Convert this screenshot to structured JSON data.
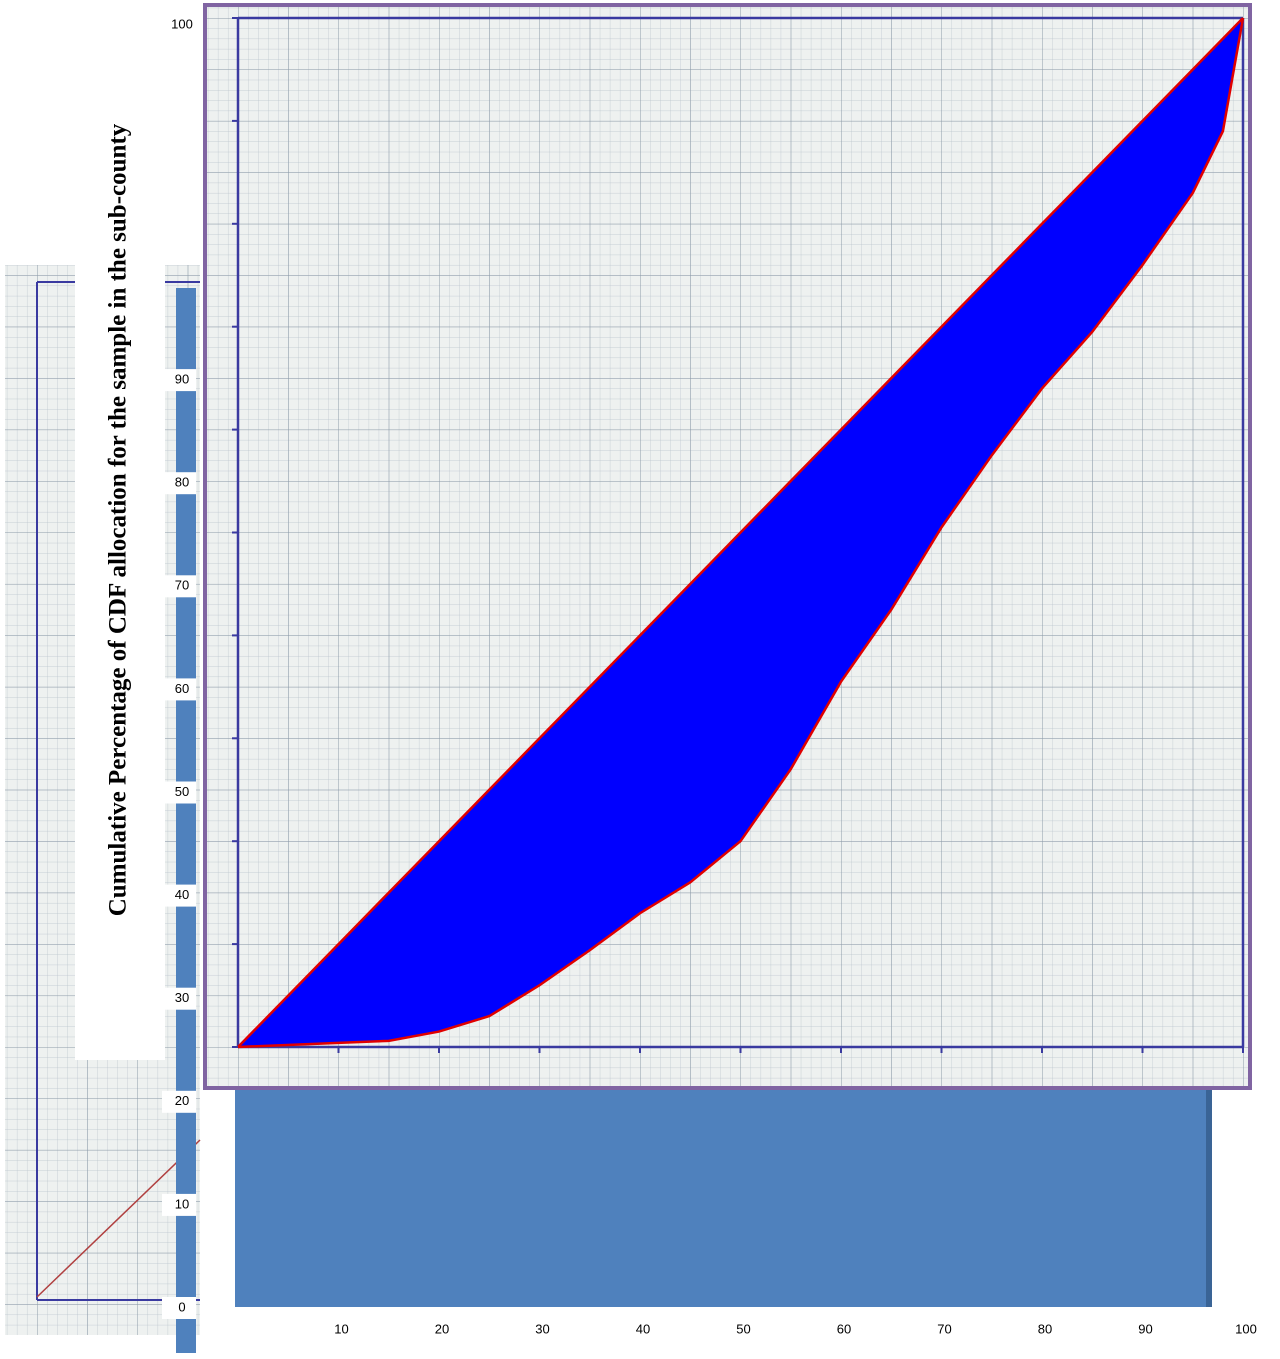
{
  "chart_data": {
    "type": "lorenz",
    "y_label": "Cumulative Percentage of CDF allocation for the sample in the sub-county",
    "x": [
      0,
      10,
      15,
      20,
      25,
      30,
      35,
      40,
      45,
      50,
      55,
      60,
      65,
      70,
      75,
      80,
      85,
      90,
      95,
      98,
      100
    ],
    "series": [
      {
        "color": "#e00000",
        "values": [
          0,
          10,
          15,
          20,
          25,
          30,
          35,
          40,
          45,
          50,
          55,
          60,
          65,
          70,
          75,
          80,
          85,
          90,
          95,
          98,
          100
        ]
      },
      {
        "color": "#e00000",
        "values": [
          0,
          0.4,
          0.6,
          1.5,
          3,
          6,
          9.4,
          13,
          16,
          20,
          27,
          35.5,
          42.5,
          50.5,
          57.5,
          64,
          69.5,
          76,
          83,
          89,
          100
        ]
      }
    ],
    "fill_color": "#0000ff",
    "xlim": [
      0,
      100
    ],
    "ylim": [
      0,
      100
    ],
    "xticks": [
      10,
      20,
      30,
      40,
      50,
      60,
      70,
      80,
      90,
      100
    ],
    "yticks": [
      0,
      10,
      20,
      30,
      40,
      50,
      60,
      70,
      80,
      90,
      100
    ]
  }
}
